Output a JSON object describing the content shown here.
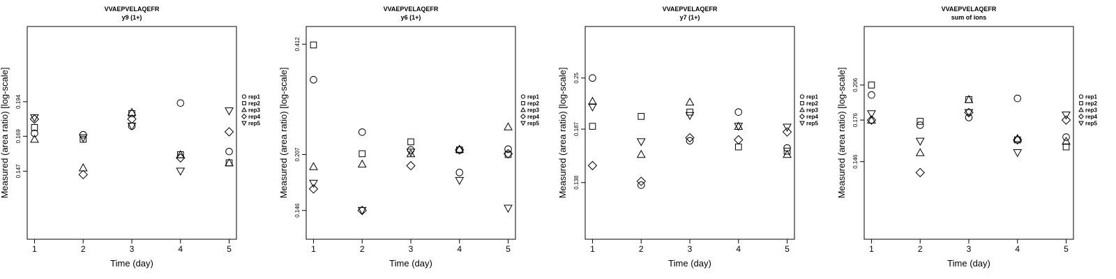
{
  "chart_data": [
    {
      "type": "scatter",
      "title": "VVAEPVELAQEFR",
      "subtitle": "y9 (1+)",
      "xlabel": "Time (day)",
      "ylabel": "Measured (area ratio) [log-scale]",
      "x": [
        1,
        2,
        3,
        4,
        5
      ],
      "xlim": [
        0.85,
        5.15
      ],
      "ylim": [
        0.112,
        0.262
      ],
      "yticks": [
        0.147,
        0.169,
        0.194
      ],
      "ytick_labels": [
        "0.147",
        "0.169",
        "0.194"
      ],
      "legend": "right",
      "series": [
        {
          "name": "rep1",
          "marker": "circle",
          "values": [
            0.171,
            0.17,
            0.176,
            0.193,
            0.159
          ]
        },
        {
          "name": "rep2",
          "marker": "square",
          "values": [
            0.175,
            0.167,
            0.185,
            0.157,
            0.152
          ]
        },
        {
          "name": "rep3",
          "marker": "triangle",
          "values": [
            0.167,
            0.149,
            0.186,
            0.157,
            0.152
          ]
        },
        {
          "name": "rep4",
          "marker": "diamond",
          "values": [
            0.181,
            0.145,
            0.181,
            0.155,
            0.172
          ]
        },
        {
          "name": "rep5",
          "marker": "triangle-down",
          "values": [
            0.182,
            0.168,
            0.176,
            0.147,
            0.187
          ]
        }
      ]
    },
    {
      "type": "scatter",
      "title": "VVAEPVELAQEFR",
      "subtitle": "y6 (1+)",
      "xlabel": "Time (day)",
      "ylabel": "Measured (area ratio) [log-scale]",
      "x": [
        1,
        2,
        3,
        4,
        5
      ],
      "xlim": [
        0.85,
        5.15
      ],
      "ylim": [
        0.122,
        0.46
      ],
      "yticks": [
        0.146,
        0.207,
        0.412
      ],
      "ytick_labels": [
        "0.146",
        "0.207",
        "0.412"
      ],
      "legend": "right",
      "series": [
        {
          "name": "rep1",
          "marker": "circle",
          "values": [
            0.33,
            0.238,
            0.213,
            0.185,
            0.214
          ]
        },
        {
          "name": "rep2",
          "marker": "square",
          "values": [
            0.41,
            0.208,
            0.224,
            0.213,
            0.207
          ]
        },
        {
          "name": "rep3",
          "marker": "triangle",
          "values": [
            0.192,
            0.195,
            0.208,
            0.214,
            0.246
          ]
        },
        {
          "name": "rep4",
          "marker": "diamond",
          "values": [
            0.167,
            0.146,
            0.193,
            0.213,
            0.208
          ]
        },
        {
          "name": "rep5",
          "marker": "triangle-down",
          "values": [
            0.173,
            0.146,
            0.21,
            0.176,
            0.148
          ]
        }
      ]
    },
    {
      "type": "scatter",
      "title": "VVAEPVELAQEFR",
      "subtitle": "y7 (1+)",
      "xlabel": "Time (day)",
      "ylabel": "Measured (area ratio) [log-scale]",
      "x": [
        1,
        2,
        3,
        4,
        5
      ],
      "xlim": [
        0.85,
        5.15
      ],
      "ylim": [
        0.1,
        0.335
      ],
      "yticks": [
        0.138,
        0.187,
        0.25
      ],
      "ytick_labels": [
        "0.138",
        "0.187",
        "0.25"
      ],
      "legend": "right",
      "series": [
        {
          "name": "rep1",
          "marker": "circle",
          "values": [
            0.25,
            0.136,
            0.175,
            0.206,
            0.168
          ]
        },
        {
          "name": "rep2",
          "marker": "square",
          "values": [
            0.19,
            0.201,
            0.206,
            0.169,
            0.165
          ]
        },
        {
          "name": "rep3",
          "marker": "triangle",
          "values": [
            0.219,
            0.162,
            0.218,
            0.19,
            0.162
          ]
        },
        {
          "name": "rep4",
          "marker": "diamond",
          "values": [
            0.152,
            0.139,
            0.178,
            0.176,
            0.184
          ]
        },
        {
          "name": "rep5",
          "marker": "triangle-down",
          "values": [
            0.212,
            0.174,
            0.202,
            0.19,
            0.189
          ]
        }
      ]
    },
    {
      "type": "scatter",
      "title": "VVAEPVELAQEFR",
      "subtitle": "sum of ions",
      "xlabel": "Time (day)",
      "ylabel": "Measured (area ratio) [log-scale]",
      "x": [
        1,
        2,
        3,
        4,
        5
      ],
      "xlim": [
        0.85,
        5.15
      ],
      "ylim": [
        0.103,
        0.268
      ],
      "yticks": [
        0.146,
        0.176,
        0.206
      ],
      "ytick_labels": [
        "0.146",
        "0.176",
        "0.206"
      ],
      "legend": "right",
      "series": [
        {
          "name": "rep1",
          "marker": "circle",
          "values": [
            0.197,
            0.172,
            0.178,
            0.194,
            0.163
          ]
        },
        {
          "name": "rep2",
          "marker": "square",
          "values": [
            0.206,
            0.175,
            0.193,
            0.161,
            0.156
          ]
        },
        {
          "name": "rep3",
          "marker": "triangle",
          "values": [
            0.176,
            0.152,
            0.193,
            0.162,
            0.16
          ]
        },
        {
          "name": "rep4",
          "marker": "diamond",
          "values": [
            0.176,
            0.139,
            0.182,
            0.161,
            0.176
          ]
        },
        {
          "name": "rep5",
          "marker": "triangle-down",
          "values": [
            0.181,
            0.16,
            0.182,
            0.152,
            0.18
          ]
        }
      ]
    }
  ]
}
